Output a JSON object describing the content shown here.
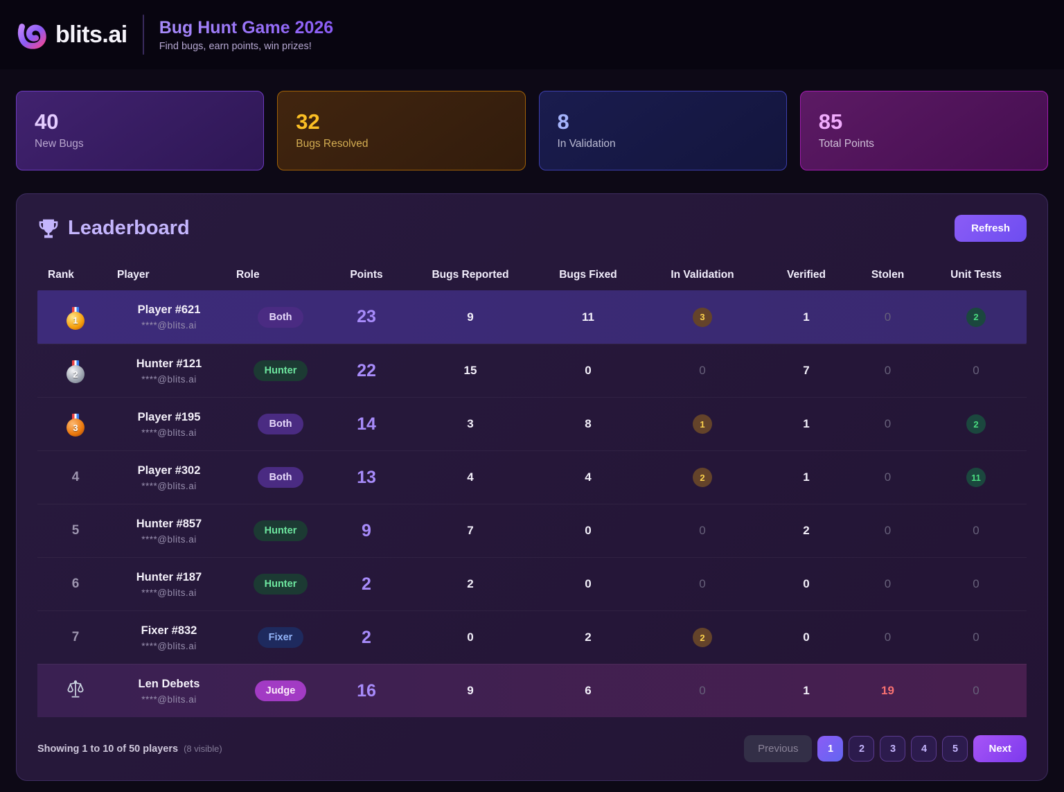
{
  "header": {
    "brand": "blits.ai",
    "title": "Bug Hunt Game 2026",
    "subtitle": "Find bugs, earn points, win prizes!"
  },
  "stats": [
    {
      "value": "40",
      "label": "New Bugs",
      "theme": "purple"
    },
    {
      "value": "32",
      "label": "Bugs Resolved",
      "theme": "amber"
    },
    {
      "value": "8",
      "label": "In Validation",
      "theme": "blue"
    },
    {
      "value": "85",
      "label": "Total Points",
      "theme": "magenta"
    }
  ],
  "leaderboard": {
    "title": "Leaderboard",
    "title_icon": "trophy-icon",
    "refresh_label": "Refresh",
    "columns": [
      "Rank",
      "Player",
      "Role",
      "Points",
      "Bugs Reported",
      "Bugs Fixed",
      "In Validation",
      "Verified",
      "Stolen",
      "Unit Tests"
    ],
    "rows": [
      {
        "rank": "1",
        "medal": "gold",
        "name": "Player #621",
        "email": "****@blits.ai",
        "role": "Both",
        "points": "23",
        "bugs_reported": "9",
        "bugs_fixed": "11",
        "in_validation": "3",
        "verified": "1",
        "stolen": "0",
        "unit_tests": "2",
        "highlight": "top"
      },
      {
        "rank": "2",
        "medal": "silver",
        "name": "Hunter #121",
        "email": "****@blits.ai",
        "role": "Hunter",
        "points": "22",
        "bugs_reported": "15",
        "bugs_fixed": "0",
        "in_validation": "0",
        "verified": "7",
        "stolen": "0",
        "unit_tests": "0",
        "highlight": ""
      },
      {
        "rank": "3",
        "medal": "bronze",
        "name": "Player #195",
        "email": "****@blits.ai",
        "role": "Both",
        "points": "14",
        "bugs_reported": "3",
        "bugs_fixed": "8",
        "in_validation": "1",
        "verified": "1",
        "stolen": "0",
        "unit_tests": "2",
        "highlight": ""
      },
      {
        "rank": "4",
        "medal": "",
        "name": "Player #302",
        "email": "****@blits.ai",
        "role": "Both",
        "points": "13",
        "bugs_reported": "4",
        "bugs_fixed": "4",
        "in_validation": "2",
        "verified": "1",
        "stolen": "0",
        "unit_tests": "11",
        "highlight": ""
      },
      {
        "rank": "5",
        "medal": "",
        "name": "Hunter #857",
        "email": "****@blits.ai",
        "role": "Hunter",
        "points": "9",
        "bugs_reported": "7",
        "bugs_fixed": "0",
        "in_validation": "0",
        "verified": "2",
        "stolen": "0",
        "unit_tests": "0",
        "highlight": ""
      },
      {
        "rank": "6",
        "medal": "",
        "name": "Hunter #187",
        "email": "****@blits.ai",
        "role": "Hunter",
        "points": "2",
        "bugs_reported": "2",
        "bugs_fixed": "0",
        "in_validation": "0",
        "verified": "0",
        "stolen": "0",
        "unit_tests": "0",
        "highlight": ""
      },
      {
        "rank": "7",
        "medal": "",
        "name": "Fixer #832",
        "email": "****@blits.ai",
        "role": "Fixer",
        "points": "2",
        "bugs_reported": "0",
        "bugs_fixed": "2",
        "in_validation": "2",
        "verified": "0",
        "stolen": "0",
        "unit_tests": "0",
        "highlight": ""
      },
      {
        "rank": "",
        "medal": "scales",
        "name": "Len Debets",
        "email": "****@blits.ai",
        "role": "Judge",
        "points": "16",
        "bugs_reported": "9",
        "bugs_fixed": "6",
        "in_validation": "0",
        "verified": "1",
        "stolen": "19",
        "unit_tests": "0",
        "highlight": "judge"
      }
    ],
    "footer": {
      "showing": "Showing 1 to 10 of 50 players",
      "visible_note": "(8 visible)",
      "pagination": {
        "prev_label": "Previous",
        "pages": [
          "1",
          "2",
          "3",
          "4",
          "5"
        ],
        "active_page": "1",
        "next_label": "Next"
      }
    }
  },
  "colors": {
    "accent_purple": "#a78bfa",
    "points_purple": "#a78bfa",
    "stat_amber": "#fbbf24",
    "stat_blue": "#a5b4fc",
    "stat_pink": "#f0abfc",
    "badge_amber_text": "#fcd34d",
    "badge_green_text": "#4ade80",
    "stolen_red": "#f87171",
    "refresh_gradient": [
      "#8b5cf6",
      "#6d4df0"
    ]
  },
  "icons": [
    "blits-logo",
    "trophy-icon",
    "gold-medal-icon",
    "silver-medal-icon",
    "bronze-medal-icon",
    "scales-icon"
  ]
}
